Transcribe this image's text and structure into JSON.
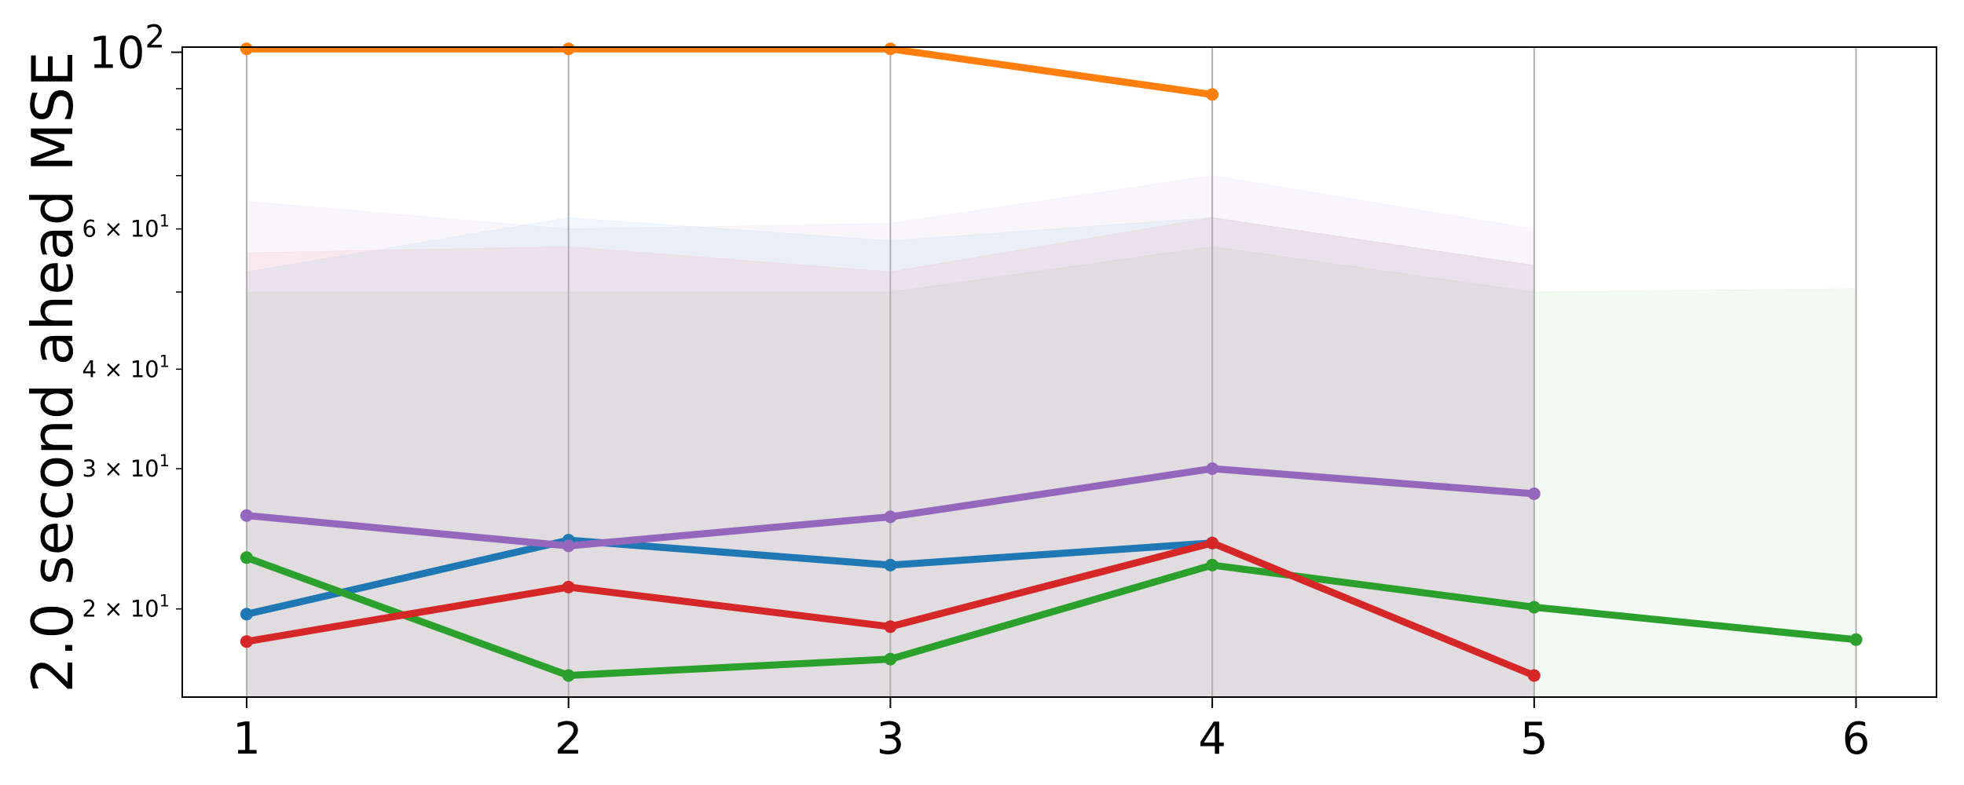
{
  "chart_data": {
    "type": "line",
    "title": "",
    "xlabel": "",
    "ylabel": "2.0 second ahead MSE",
    "yscale": "log",
    "ylim": [
      15.5,
      101.5
    ],
    "xlim": [
      0.8,
      6.25
    ],
    "grid": "vertical",
    "x_ticks": [
      {
        "value": 1,
        "label": "1"
      },
      {
        "value": 2,
        "label": "2"
      },
      {
        "value": 3,
        "label": "3"
      },
      {
        "value": 4,
        "label": "4"
      },
      {
        "value": 5,
        "label": "5"
      },
      {
        "value": 6,
        "label": "6"
      }
    ],
    "y_major_ticks": [
      {
        "value": 100,
        "base": "10",
        "exp": "2"
      }
    ],
    "y_minor_ticks": [
      {
        "value": 20,
        "coef": "2",
        "base": "10",
        "exp": "1"
      },
      {
        "value": 30,
        "coef": "3",
        "base": "10",
        "exp": "1"
      },
      {
        "value": 40,
        "coef": "4",
        "base": "10",
        "exp": "1"
      },
      {
        "value": 60,
        "coef": "6",
        "base": "10",
        "exp": "1"
      }
    ],
    "y_unlabeled_minor_ticks": [
      50,
      70,
      80,
      90
    ],
    "series": [
      {
        "color": "#1f77b4",
        "x": [
          1,
          2,
          3,
          4
        ],
        "y": [
          19.7,
          24.4,
          22.7,
          24.2
        ],
        "band_upper": [
          53.0,
          62.0,
          58.0,
          62.0
        ],
        "band_upper_x": [
          1,
          2,
          3,
          4,
          5
        ],
        "band_upper_full": [
          53.0,
          62.0,
          58.0,
          62.0,
          54.0
        ]
      },
      {
        "color": "#ff7f0e",
        "x": [
          1,
          2,
          3,
          4
        ],
        "y": [
          101.0,
          101.0,
          101.0,
          88.5
        ],
        "band_upper": null
      },
      {
        "color": "#2ca02c",
        "x": [
          1,
          2,
          3,
          4,
          5,
          6
        ],
        "y": [
          23.2,
          16.5,
          17.3,
          22.7,
          20.1,
          18.3
        ],
        "band_upper": [
          50.0,
          50.0,
          50.0,
          57.0,
          50.0,
          50.5
        ]
      },
      {
        "color": "#d62728",
        "x": [
          1,
          2,
          3,
          4,
          5
        ],
        "y": [
          18.2,
          21.3,
          19.0,
          24.2,
          16.5
        ],
        "band_upper": [
          56.0,
          57.0,
          53.0,
          62.0,
          54.0
        ]
      },
      {
        "color": "#9467bd",
        "x": [
          1,
          2,
          3,
          4,
          5
        ],
        "y": [
          26.2,
          24.0,
          26.1,
          30.0,
          27.9
        ],
        "band_upper": [
          65.0,
          60.0,
          61.0,
          70.0,
          60.0
        ]
      }
    ]
  }
}
